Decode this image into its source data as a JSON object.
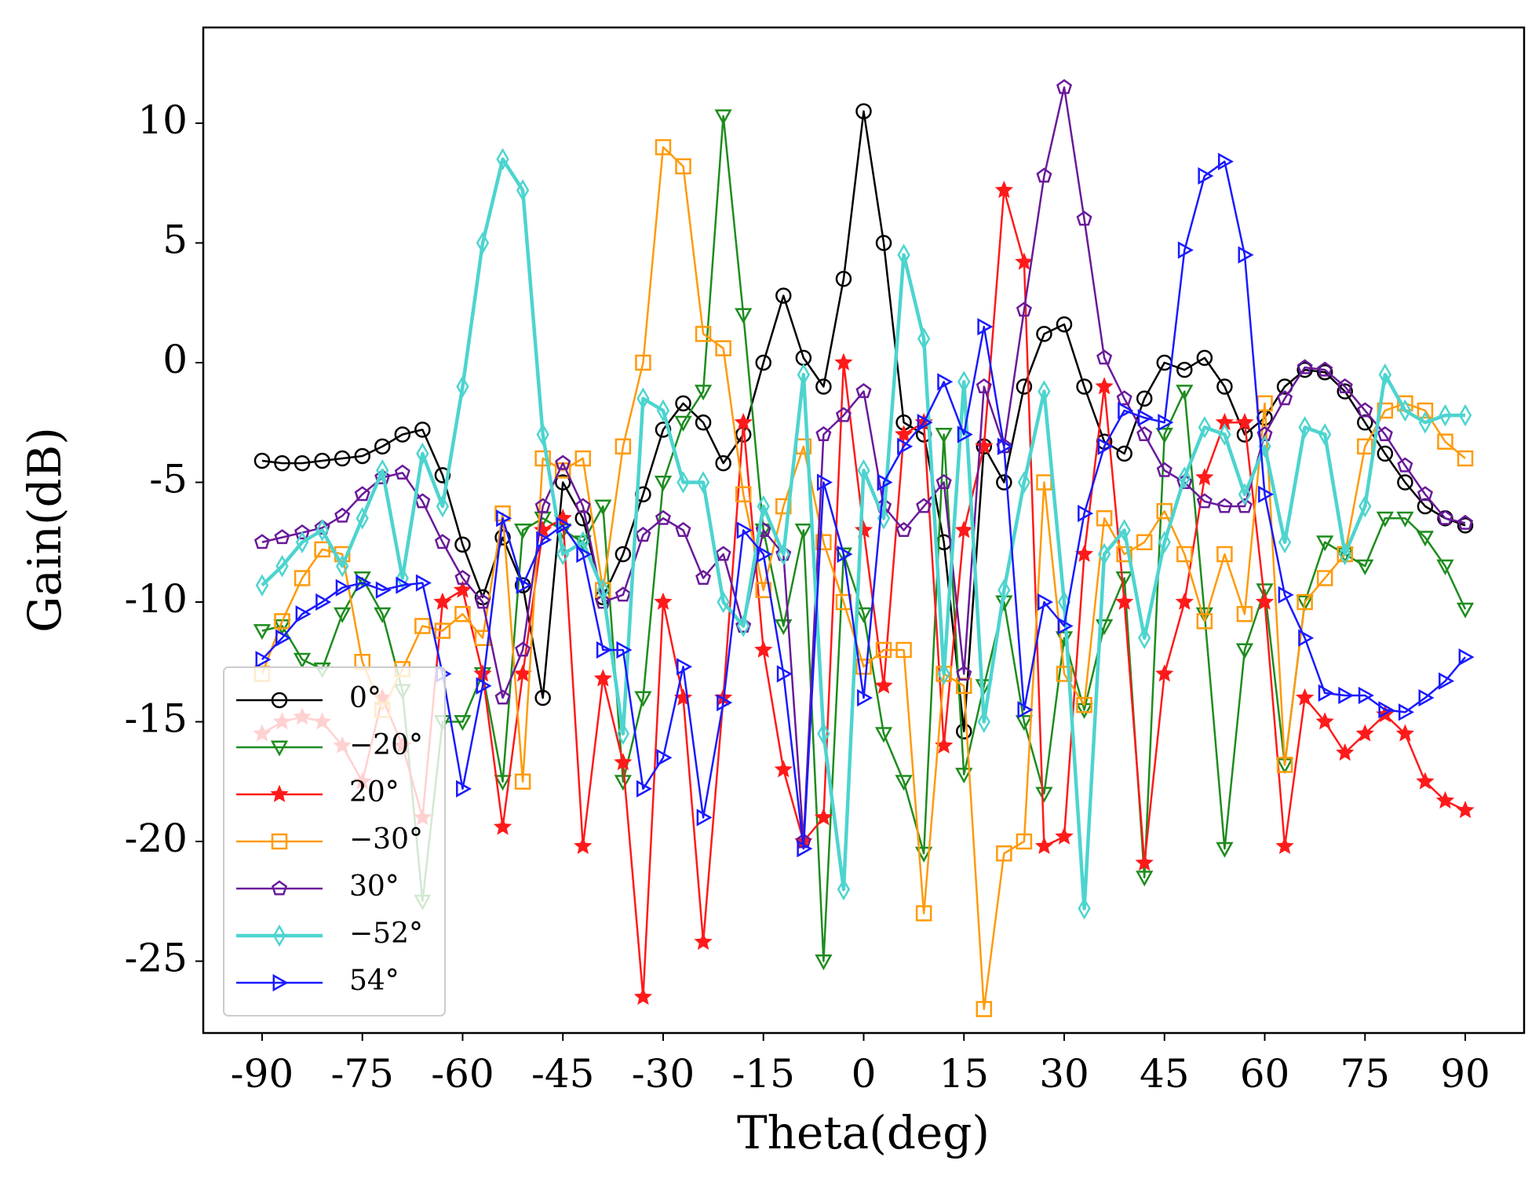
{
  "chart_data": {
    "type": "line",
    "x_label": "Theta(deg)",
    "y_label": "Gain(dB)",
    "x": [
      -90,
      -87,
      -84,
      -81,
      -78,
      -75,
      -72,
      -69,
      -66,
      -63,
      -60,
      -57,
      -54,
      -51,
      -48,
      -45,
      -42,
      -39,
      -36,
      -33,
      -30,
      -27,
      -24,
      -21,
      -18,
      -15,
      -12,
      -9,
      -6,
      -3,
      0,
      3,
      6,
      9,
      12,
      15,
      18,
      21,
      24,
      27,
      30,
      33,
      36,
      39,
      42,
      45,
      48,
      51,
      54,
      57,
      60,
      63,
      66,
      69,
      72,
      75,
      78,
      81,
      84,
      87,
      90
    ],
    "xlim": [
      -98.8,
      98.8
    ],
    "ylim": [
      -28,
      14
    ],
    "xticks": [
      -90,
      -75,
      -60,
      -45,
      -30,
      -15,
      0,
      15,
      30,
      45,
      60,
      75,
      90
    ],
    "yticks": [
      10,
      5,
      0,
      -5,
      -10,
      -15,
      -20,
      -25
    ],
    "legend": "lower left",
    "series": [
      {
        "name": "0°",
        "color": "#000000",
        "marker": "o",
        "values": [
          -4.1,
          -4.2,
          -4.2,
          -4.1,
          -4.0,
          -3.9,
          -3.5,
          -3.0,
          -2.8,
          -4.7,
          -7.6,
          -9.8,
          -7.3,
          -9.3,
          -14,
          -5,
          -6.5,
          -9.8,
          -8,
          -5.5,
          -2.8,
          -1.7,
          -2.5,
          -4.2,
          -3,
          0,
          2.8,
          0.2,
          -1,
          3.5,
          10.5,
          5,
          -2.5,
          -3,
          -7.5,
          -15.4,
          -3.5,
          -5,
          -1,
          1.2,
          1.6,
          -1,
          -3.3,
          -3.8,
          -1.5,
          0,
          -0.3,
          0.2,
          -1,
          -3,
          -2.3,
          -1,
          -0.3,
          -0.4,
          -1.2,
          -2.5,
          -3.8,
          -5,
          -6,
          -6.5,
          -6.8
        ]
      },
      {
        "name": "−20°",
        "color": "#1e8c1e",
        "marker": "v",
        "values": [
          -11.2,
          -11,
          -12.4,
          -12.8,
          -10.5,
          -9,
          -10.5,
          -13.7,
          -22.5,
          -15,
          -15,
          -13,
          -17.5,
          -7,
          -6.5,
          -7,
          -7.5,
          -6,
          -17.5,
          -14,
          -5,
          -2.5,
          -1.2,
          10.3,
          2,
          -7,
          -11,
          -7,
          -25,
          -8,
          -10.5,
          -15.5,
          -17.5,
          -20.5,
          -3,
          -17.2,
          -13.5,
          -10,
          -15,
          -18,
          -11.5,
          -14.5,
          -11,
          -9,
          -21.5,
          -3,
          -1.2,
          -10.5,
          -20.3,
          -12,
          -9.5,
          -16.8,
          -10,
          -7.5,
          -8,
          -8.5,
          -6.5,
          -6.5,
          -7.3,
          -8.5,
          -10.3
        ]
      },
      {
        "name": "20°",
        "color": "#ff1a1a",
        "marker": "*",
        "values": [
          -15.5,
          -15,
          -14.8,
          -15,
          -16,
          -17.5,
          -14,
          -16,
          -19,
          -10,
          -9.5,
          -13,
          -19.4,
          -13,
          -7,
          -6.5,
          -20.2,
          -13.2,
          -16.7,
          -26.5,
          -10,
          -14,
          -24.2,
          -14,
          -2.5,
          -12,
          -17,
          -20,
          -19,
          0,
          -7,
          -13.5,
          -3,
          -2.5,
          -16,
          -7,
          -3.5,
          7.2,
          4.2,
          -20.2,
          -19.8,
          -8,
          -1,
          -10,
          -20.9,
          -13,
          -10,
          -4.8,
          -2.5,
          -2.5,
          -10,
          -20.2,
          -14,
          -15,
          -16.3,
          -15.5,
          -14.7,
          -15.5,
          -17.5,
          -18.3,
          -18.7
        ]
      },
      {
        "name": "−30°",
        "color": "#ff9a0a",
        "marker": "s",
        "values": [
          -13,
          -10.8,
          -9,
          -7.8,
          -8,
          -12.5,
          -14.5,
          -12.8,
          -11,
          -11.2,
          -10.5,
          -11.5,
          -6.3,
          -17.5,
          -4,
          -4.5,
          -4,
          -9.5,
          -3.5,
          0,
          9,
          8.2,
          1.2,
          0.6,
          -5.5,
          -9.5,
          -6,
          -3.5,
          -7.5,
          -10,
          -12.7,
          -12,
          -12,
          -23,
          -13,
          -13.5,
          -27,
          -20.5,
          -20,
          -5,
          -13,
          -14.3,
          -6.5,
          -8,
          -7.5,
          -6.2,
          -8,
          -10.8,
          -8,
          -10.5,
          -1.7,
          -16.8,
          -10,
          -9,
          -8,
          -3.5,
          -2,
          -1.7,
          -2,
          -3.3,
          -4
        ]
      },
      {
        "name": "30°",
        "color": "#6a1a9a",
        "marker": "p",
        "values": [
          -7.5,
          -7.3,
          -7.1,
          -6.9,
          -6.4,
          -5.5,
          -4.8,
          -4.6,
          -5.8,
          -7.5,
          -9,
          -10,
          -14,
          -12,
          -6,
          -4.2,
          -6,
          -10,
          -9.7,
          -7.2,
          -6.5,
          -7,
          -9,
          -8,
          -11,
          -7,
          -8,
          -20,
          -3,
          -2.2,
          -1.2,
          -6,
          -7,
          -6,
          -5,
          -13,
          -1,
          -3.5,
          2.2,
          7.8,
          11.5,
          6,
          0.2,
          -1.5,
          -3,
          -4.5,
          -5,
          -5.8,
          -6,
          -6,
          -3,
          -1.5,
          -0.2,
          -0.3,
          -1,
          -2,
          -3,
          -4.3,
          -5.5,
          -6.5,
          -6.7
        ]
      },
      {
        "name": "−52°",
        "color": "#4dd4cf",
        "marker": "d",
        "values": [
          -9.3,
          -8.5,
          -7.5,
          -7,
          -8.5,
          -6.5,
          -4.5,
          -9,
          -3.8,
          -6,
          -1,
          5,
          8.5,
          7.2,
          -3,
          -8,
          -7.5,
          -9.5,
          -15.5,
          -1.5,
          -2,
          -5,
          -5,
          -10,
          -11,
          -6,
          -8,
          -0.5,
          -15.5,
          -22,
          -4.5,
          -6.5,
          4.5,
          1,
          -13,
          -0.8,
          -15,
          -9.5,
          -5,
          -1.2,
          -10,
          -22.8,
          -8,
          -7,
          -11.5,
          -7.5,
          -4.8,
          -2.7,
          -3,
          -5.5,
          -3.5,
          -7.5,
          -2.7,
          -3,
          -8,
          -6,
          -0.5,
          -2,
          -2.5,
          -2.2,
          -2.2
        ]
      },
      {
        "name": "54°",
        "color": "#1a1aff",
        "marker": ">",
        "values": [
          -12.4,
          -11.5,
          -10.5,
          -10,
          -9.4,
          -9.2,
          -9.5,
          -9.3,
          -9.2,
          -13,
          -17.8,
          -13.5,
          -6.5,
          -9.3,
          -7.4,
          -6.8,
          -8,
          -12,
          -12,
          -17.8,
          -16.5,
          -12.7,
          -19,
          -14.2,
          -7,
          -8,
          -13,
          -20.3,
          -5,
          -8,
          -14,
          -5,
          -3.5,
          -2.5,
          -0.8,
          -3,
          1.5,
          -3.5,
          -14.5,
          -10,
          -11,
          -6.3,
          -3.5,
          -2,
          -2.3,
          -2.5,
          4.7,
          7.8,
          8.4,
          4.5,
          -5.5,
          -9.7,
          -11.5,
          -13.8,
          -13.9,
          -13.9,
          -14.5,
          -14.6,
          -14,
          -13.3,
          -12.3
        ]
      }
    ]
  }
}
